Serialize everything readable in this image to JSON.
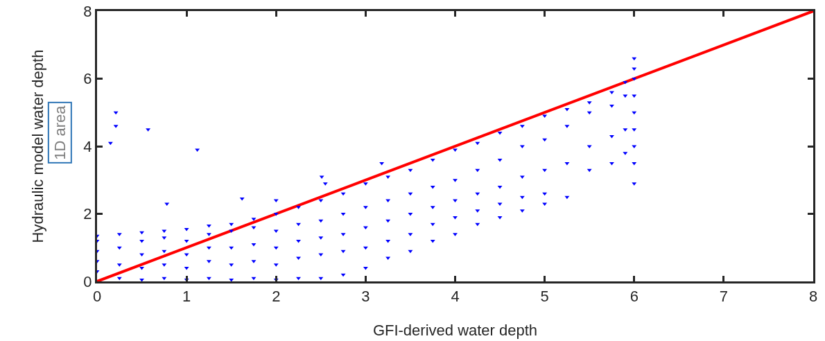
{
  "chart_data": {
    "type": "scatter",
    "xlabel": "GFI-derived water depth",
    "ylabel": "Hydraulic model water depth",
    "annotations": [
      "1D area"
    ],
    "xlim": [
      0,
      8
    ],
    "xticks": [
      0,
      1,
      2,
      3,
      4,
      5,
      6,
      7,
      8
    ],
    "ylim": [
      0,
      8
    ],
    "yticks": [
      0,
      2,
      4,
      6,
      8
    ],
    "grid": false,
    "marker": "triangle",
    "series": [
      {
        "color": "#0000ff",
        "x": [
          0,
          0,
          0,
          0,
          0,
          0.25,
          0.25,
          0.25,
          0.25,
          0.5,
          0.5,
          0.5,
          0.5,
          0.5,
          0.75,
          0.75,
          0.75,
          0.75,
          0.75,
          1,
          1,
          1,
          1,
          1,
          1.25,
          1.25,
          1.25,
          1.25,
          1.25,
          1.5,
          1.5,
          1.5,
          1.5,
          1.5,
          1.75,
          1.75,
          1.75,
          1.75,
          1.75,
          2,
          2,
          2,
          2,
          2,
          2.25,
          2.25,
          2.25,
          2.25,
          2.25,
          2.5,
          2.5,
          2.5,
          2.5,
          2.5,
          2.75,
          2.75,
          2.75,
          2.75,
          2.75,
          3,
          3,
          3,
          3,
          3,
          3.25,
          3.25,
          3.25,
          3.25,
          3.25,
          3.5,
          3.5,
          3.5,
          3.5,
          3.5,
          3.75,
          3.75,
          3.75,
          3.75,
          3.75,
          4,
          4,
          4,
          4,
          4,
          4.25,
          4.25,
          4.25,
          4.25,
          4.25,
          4.5,
          4.5,
          4.5,
          4.5,
          4.5,
          4.75,
          4.75,
          4.75,
          4.75,
          4.75,
          5,
          5,
          5,
          5,
          5,
          5.25,
          5.25,
          5.25,
          5.25,
          5.5,
          5.5,
          5.5,
          5.5,
          5.75,
          5.75,
          5.75,
          5.75,
          5.9,
          5.9,
          5.9,
          5.9,
          6,
          6,
          6,
          6,
          6,
          6,
          6,
          6,
          6,
          0.21,
          0.21,
          0.15,
          0.57,
          1.12,
          0.78,
          1.62,
          2.51,
          3.18,
          2.0,
          2.55
        ],
        "values": [
          0.3,
          0.6,
          0.9,
          1.2,
          1.35,
          0.1,
          0.5,
          1.0,
          1.4,
          0.05,
          0.4,
          0.8,
          1.2,
          1.45,
          0.1,
          0.5,
          0.9,
          1.3,
          1.5,
          0.05,
          0.4,
          0.8,
          1.2,
          1.55,
          0.1,
          0.6,
          1.0,
          1.4,
          1.65,
          0.05,
          0.5,
          1.0,
          1.5,
          1.7,
          0.1,
          0.6,
          1.1,
          1.6,
          1.85,
          0.05,
          0.5,
          1.0,
          1.5,
          2.0,
          0.1,
          0.7,
          1.2,
          1.7,
          2.2,
          0.1,
          0.8,
          1.3,
          1.8,
          2.4,
          0.2,
          0.9,
          1.4,
          2.0,
          2.6,
          0.4,
          1.0,
          1.6,
          2.2,
          2.9,
          0.7,
          1.2,
          1.8,
          2.4,
          3.1,
          0.9,
          1.4,
          2.0,
          2.6,
          3.3,
          1.2,
          1.7,
          2.2,
          2.8,
          3.6,
          1.4,
          1.9,
          2.4,
          3.0,
          3.9,
          1.7,
          2.1,
          2.6,
          3.3,
          4.1,
          1.9,
          2.3,
          2.8,
          3.6,
          4.4,
          2.1,
          2.5,
          3.1,
          4.0,
          4.6,
          2.3,
          2.6,
          3.3,
          4.2,
          4.9,
          2.5,
          3.5,
          4.6,
          5.1,
          3.3,
          4.0,
          5.0,
          5.3,
          3.5,
          4.3,
          5.2,
          5.6,
          3.8,
          4.5,
          5.5,
          5.9,
          2.9,
          3.5,
          4.0,
          4.5,
          5.0,
          5.5,
          6.0,
          6.3,
          6.6,
          5.0,
          4.6,
          4.1,
          4.5,
          3.9,
          2.3,
          2.45,
          3.1,
          3.5,
          2.4,
          2.9
        ]
      },
      {
        "type": "line",
        "color": "#ff0000",
        "marker": "none",
        "line_style": "solid",
        "x": [
          0,
          8
        ],
        "values": [
          0,
          8
        ]
      }
    ]
  }
}
